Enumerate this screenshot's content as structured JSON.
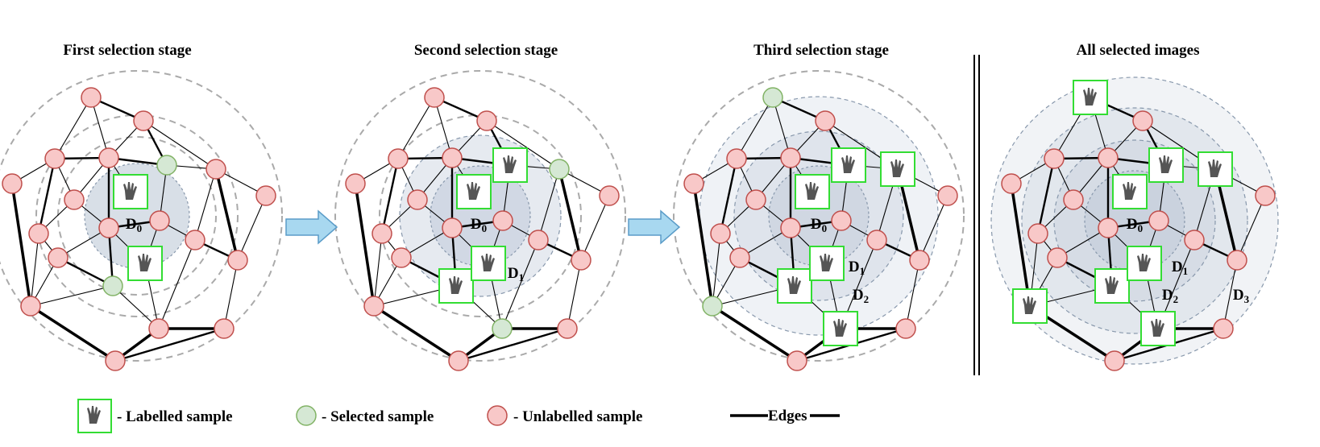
{
  "panels": [
    {
      "title": "First selection stage",
      "region_labels": [
        "D0"
      ]
    },
    {
      "title": "Second selection stage",
      "region_labels": [
        "D0",
        "D1"
      ]
    },
    {
      "title": "Third selection stage",
      "region_labels": [
        "D0",
        "D1",
        "D2"
      ]
    },
    {
      "title": "All selected images",
      "region_labels": [
        "D0",
        "D1",
        "D2",
        "D3"
      ]
    }
  ],
  "legend": {
    "labelled": "- Labelled sample",
    "selected": "- Selected sample",
    "unlabelled": "- Unlabelled sample",
    "edges": "Edges"
  },
  "colors": {
    "unlabelled_fill": "#f8c8c8",
    "unlabelled_stroke": "#c0504d",
    "selected_fill": "#d5e8d4",
    "selected_stroke": "#82b366",
    "labelled_stroke": "#33dd33",
    "region_fill": "#b8c4d4",
    "dashed_ring": "#aaaaaa",
    "arrow_fill": "#a8d8f0",
    "arrow_stroke": "#5a9cc8"
  },
  "icons": {
    "labelled_thumbnail": "hand-gesture-icon"
  }
}
